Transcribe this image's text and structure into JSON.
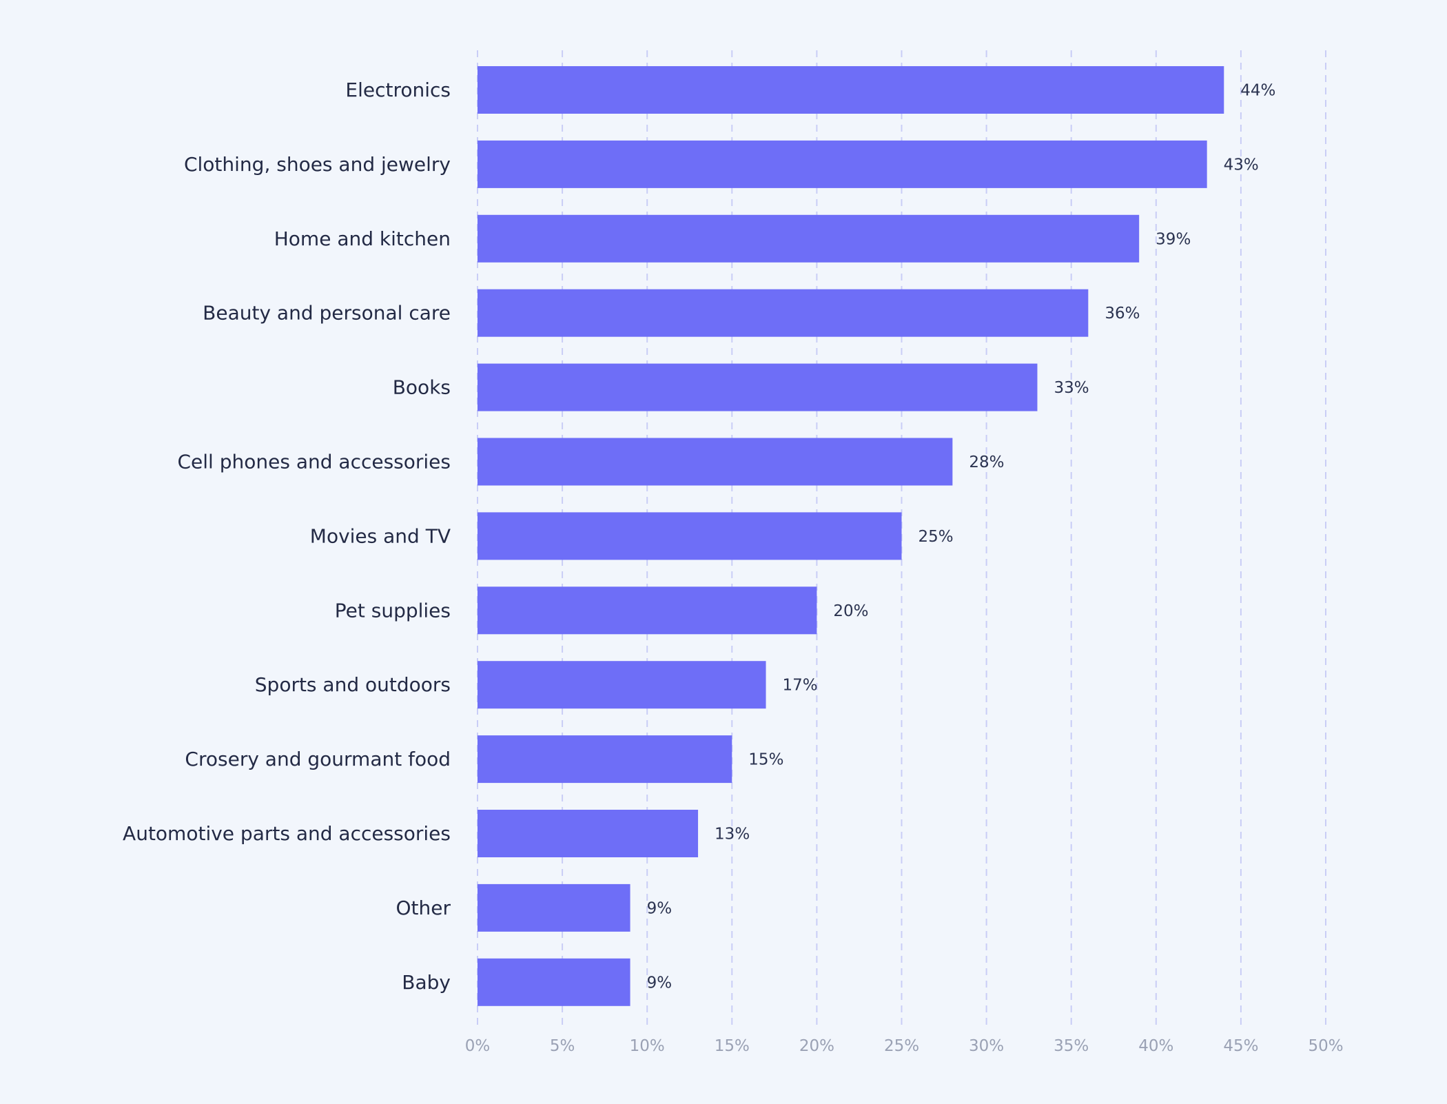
{
  "chart_data": {
    "type": "bar",
    "orientation": "horizontal",
    "title": "",
    "xlabel": "",
    "ylabel": "",
    "categories": [
      "Electronics",
      "Clothing, shoes and jewelry",
      "Home and kitchen",
      "Beauty and personal care",
      "Books",
      "Cell phones and accessories",
      "Movies and TV",
      "Pet supplies",
      "Sports and outdoors",
      "Crosery and gourmant food",
      "Automotive parts and accessories",
      "Other",
      "Baby"
    ],
    "values": [
      44,
      43,
      39,
      36,
      33,
      28,
      25,
      20,
      17,
      15,
      13,
      9,
      9
    ],
    "value_labels": [
      "44%",
      "43%",
      "39%",
      "36%",
      "33%",
      "28%",
      "25%",
      "20%",
      "17%",
      "15%",
      "13%",
      "9%",
      "9%"
    ],
    "xlim": [
      0,
      50
    ],
    "x_ticks": [
      0,
      5,
      10,
      15,
      20,
      25,
      30,
      35,
      40,
      45,
      50
    ],
    "x_tick_labels": [
      "0%",
      "5%",
      "10%",
      "15%",
      "20%",
      "25%",
      "30%",
      "35%",
      "40%",
      "45%",
      "50%"
    ],
    "grid": true,
    "grid_style": "dashed",
    "legend": "none",
    "colors": {
      "bar": "#6e6ef7",
      "grid": "#c9cdf6",
      "background": "#f2f6fc",
      "category_text": "#232a45",
      "value_text": "#2b3350",
      "tick_text": "#9aa1b4"
    }
  }
}
